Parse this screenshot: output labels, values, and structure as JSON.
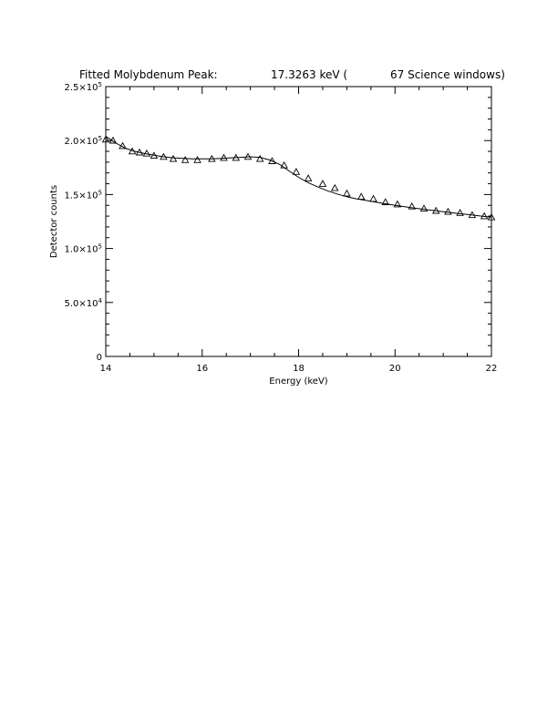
{
  "chart_data": {
    "type": "scatter",
    "title_parts": [
      "Fitted Molybdenum Peak:",
      "17.3263 keV (",
      "67 Science windows)"
    ],
    "xlabel": "Energy (keV)",
    "ylabel": "Detector counts",
    "xlim": [
      14,
      22
    ],
    "ylim": [
      0,
      250000
    ],
    "x_ticks": [
      14,
      16,
      18,
      20,
      22
    ],
    "x_tick_labels": [
      "14",
      "16",
      "18",
      "20",
      "22"
    ],
    "y_ticks": [
      0,
      50000,
      100000,
      150000,
      200000,
      250000
    ],
    "y_tick_labels": [
      {
        "mant": "0",
        "exp": ""
      },
      {
        "mant": "5.0×10",
        "exp": "4"
      },
      {
        "mant": "1.0×10",
        "exp": "5"
      },
      {
        "mant": "1.5×10",
        "exp": "5"
      },
      {
        "mant": "2.0×10",
        "exp": "5"
      },
      {
        "mant": "2.5×10",
        "exp": "5"
      }
    ],
    "x_minor_step": 0.5,
    "y_minor_step": 10000,
    "grid": false,
    "series": [
      {
        "kind": "points",
        "marker": "triangle",
        "x": [
          14.0,
          14.15,
          14.35,
          14.55,
          14.7,
          14.85,
          15.0,
          15.2,
          15.4,
          15.65,
          15.9,
          16.2,
          16.45,
          16.7,
          16.95,
          17.2,
          17.45,
          17.7,
          17.95,
          18.2,
          18.5,
          18.75,
          19.0,
          19.3,
          19.55,
          19.8,
          20.05,
          20.35,
          20.6,
          20.85,
          21.1,
          21.35,
          21.6,
          21.85,
          22.0
        ],
        "y": [
          201000,
          200000,
          195000,
          190000,
          189000,
          188000,
          186000,
          185000,
          183000,
          182000,
          182000,
          183000,
          184000,
          184000,
          185000,
          183000,
          181000,
          177000,
          171000,
          165000,
          160000,
          156000,
          151000,
          148000,
          146000,
          143000,
          141000,
          139000,
          137000,
          135000,
          134000,
          133000,
          131000,
          130000,
          129000
        ]
      },
      {
        "kind": "line",
        "x": [
          14.0,
          14.2,
          14.4,
          14.6,
          14.8,
          15.0,
          15.2,
          15.4,
          15.6,
          15.8,
          16.0,
          16.2,
          16.4,
          16.6,
          16.8,
          17.0,
          17.2,
          17.4,
          17.6,
          17.8,
          18.0,
          18.2,
          18.4,
          18.6,
          18.8,
          19.0,
          19.2,
          19.4,
          19.6,
          19.8,
          20.0,
          20.2,
          20.4,
          20.6,
          20.8,
          21.0,
          21.2,
          21.4,
          21.6,
          21.8,
          22.0
        ],
        "y": [
          204000,
          198000,
          193000,
          190000,
          188000,
          186500,
          185000,
          184000,
          183500,
          183000,
          183000,
          183000,
          183500,
          184000,
          184500,
          185000,
          184500,
          182000,
          178000,
          172000,
          166000,
          161000,
          157000,
          153500,
          150500,
          148000,
          146000,
          144500,
          143000,
          141500,
          140000,
          138700,
          137500,
          136300,
          135200,
          134100,
          133000,
          132000,
          131000,
          130000,
          129000
        ]
      }
    ]
  }
}
